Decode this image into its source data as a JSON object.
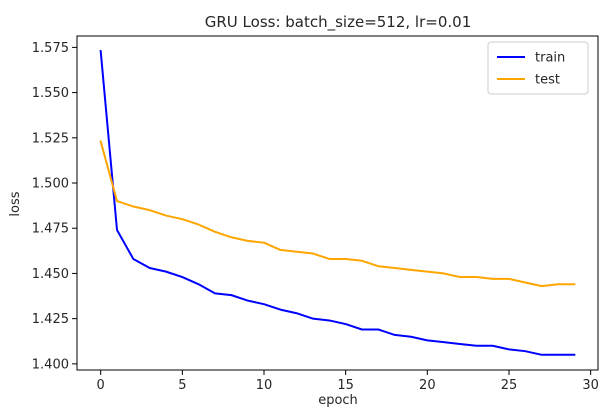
{
  "chart_data": {
    "type": "line",
    "title": "GRU Loss: batch_size=512, lr=0.01",
    "xlabel": "epoch",
    "ylabel": "loss",
    "xlim": [
      -1.45,
      30.45
    ],
    "ylim": [
      1.3966,
      1.5813
    ],
    "x_ticks": [
      0,
      5,
      10,
      15,
      20,
      25,
      30
    ],
    "y_ticks": [
      1.4,
      1.425,
      1.45,
      1.475,
      1.5,
      1.525,
      1.55,
      1.575
    ],
    "y_tick_labels": [
      "1.400",
      "1.425",
      "1.450",
      "1.475",
      "1.500",
      "1.525",
      "1.550",
      "1.575"
    ],
    "grid": false,
    "legend": "upper-right",
    "x": [
      0,
      1,
      2,
      3,
      4,
      5,
      6,
      7,
      8,
      9,
      10,
      11,
      12,
      13,
      14,
      15,
      16,
      17,
      18,
      19,
      20,
      21,
      22,
      23,
      24,
      25,
      26,
      27,
      28,
      29
    ],
    "series": [
      {
        "name": "train",
        "color": "#0000ff",
        "values": [
          1.573,
          1.474,
          1.458,
          1.453,
          1.451,
          1.448,
          1.444,
          1.439,
          1.438,
          1.435,
          1.433,
          1.43,
          1.428,
          1.425,
          1.424,
          1.422,
          1.419,
          1.419,
          1.416,
          1.415,
          1.413,
          1.412,
          1.411,
          1.41,
          1.41,
          1.408,
          1.407,
          1.405,
          1.405,
          1.405
        ]
      },
      {
        "name": "test",
        "color": "#ffa500",
        "values": [
          1.523,
          1.49,
          1.487,
          1.485,
          1.482,
          1.48,
          1.477,
          1.473,
          1.47,
          1.468,
          1.467,
          1.463,
          1.462,
          1.461,
          1.458,
          1.458,
          1.457,
          1.454,
          1.453,
          1.452,
          1.451,
          1.45,
          1.448,
          1.448,
          1.447,
          1.447,
          1.445,
          1.443,
          1.444,
          1.444
        ]
      }
    ]
  }
}
